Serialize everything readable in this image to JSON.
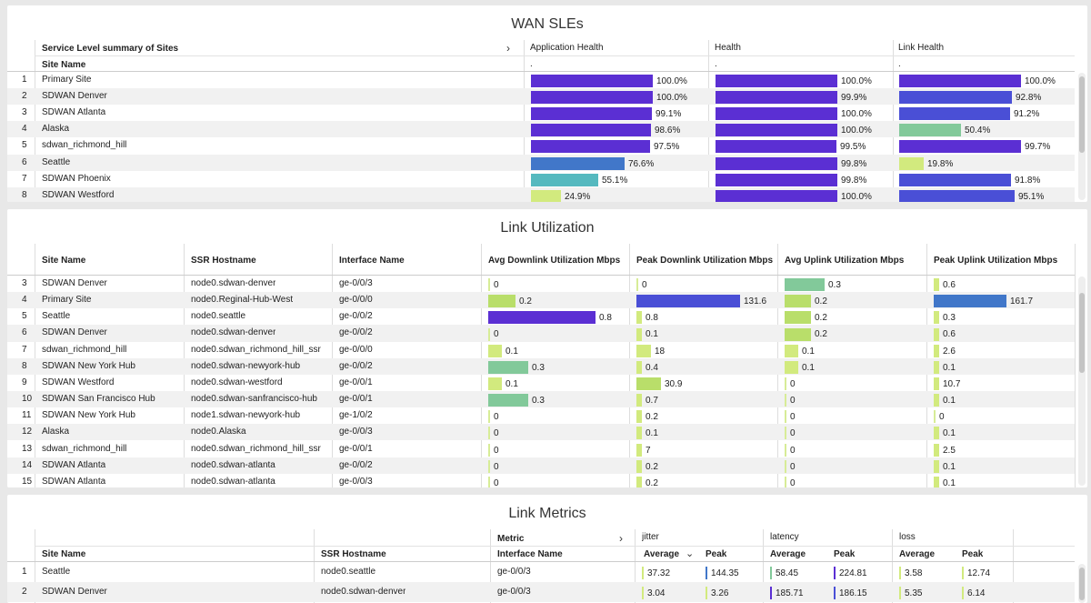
{
  "colors": {
    "purple": "#5b2fd3",
    "indigo": "#4a4fd6",
    "blue": "#4177c9",
    "teal": "#55b9bf",
    "green": "#82c99a",
    "lime": "#d2ea7e",
    "ygreen": "#b9de6a"
  },
  "wan": {
    "title": "WAN SLEs",
    "summary_label": "Service Level summary of Sites",
    "expand_icon": "chevron-right-icon",
    "site_col": "Site Name",
    "metric_cols": [
      "Application Health",
      "Health",
      "Link Health"
    ],
    "dot": ".",
    "rows": [
      {
        "n": "1",
        "site": "Primary Site",
        "vals": [
          {
            "v": 100.0,
            "t": "100.0%",
            "c": "purple"
          },
          {
            "v": 100.0,
            "t": "100.0%",
            "c": "purple"
          },
          {
            "v": 100.0,
            "t": "100.0%",
            "c": "purple"
          }
        ]
      },
      {
        "n": "2",
        "site": "SDWAN Denver",
        "vals": [
          {
            "v": 100.0,
            "t": "100.0%",
            "c": "purple"
          },
          {
            "v": 99.9,
            "t": "99.9%",
            "c": "purple"
          },
          {
            "v": 92.8,
            "t": "92.8%",
            "c": "indigo"
          }
        ]
      },
      {
        "n": "3",
        "site": "SDWAN Atlanta",
        "vals": [
          {
            "v": 99.1,
            "t": "99.1%",
            "c": "purple"
          },
          {
            "v": 100.0,
            "t": "100.0%",
            "c": "purple"
          },
          {
            "v": 91.2,
            "t": "91.2%",
            "c": "indigo"
          }
        ]
      },
      {
        "n": "4",
        "site": "Alaska",
        "vals": [
          {
            "v": 98.6,
            "t": "98.6%",
            "c": "purple"
          },
          {
            "v": 100.0,
            "t": "100.0%",
            "c": "purple"
          },
          {
            "v": 50.4,
            "t": "50.4%",
            "c": "green"
          }
        ]
      },
      {
        "n": "5",
        "site": "sdwan_richmond_hill",
        "vals": [
          {
            "v": 97.5,
            "t": "97.5%",
            "c": "purple"
          },
          {
            "v": 99.5,
            "t": "99.5%",
            "c": "purple"
          },
          {
            "v": 99.7,
            "t": "99.7%",
            "c": "purple"
          }
        ]
      },
      {
        "n": "6",
        "site": "Seattle",
        "vals": [
          {
            "v": 76.6,
            "t": "76.6%",
            "c": "blue"
          },
          {
            "v": 99.8,
            "t": "99.8%",
            "c": "purple"
          },
          {
            "v": 19.8,
            "t": "19.8%",
            "c": "lime"
          }
        ]
      },
      {
        "n": "7",
        "site": "SDWAN Phoenix",
        "vals": [
          {
            "v": 55.1,
            "t": "55.1%",
            "c": "teal"
          },
          {
            "v": 99.8,
            "t": "99.8%",
            "c": "purple"
          },
          {
            "v": 91.8,
            "t": "91.8%",
            "c": "indigo"
          }
        ]
      },
      {
        "n": "8",
        "site": "SDWAN Westford",
        "vals": [
          {
            "v": 24.9,
            "t": "24.9%",
            "c": "lime"
          },
          {
            "v": 100.0,
            "t": "100.0%",
            "c": "purple"
          },
          {
            "v": 95.1,
            "t": "95.1%",
            "c": "indigo"
          }
        ]
      }
    ]
  },
  "util": {
    "title": "Link Utilization",
    "cols": [
      "Site Name",
      "SSR Hostname",
      "Interface Name",
      "Avg Downlink Utilization Mbps",
      "Peak Downlink Utilization Mbps",
      "Avg Uplink Utilization Mbps",
      "Peak Uplink Utilization Mbps"
    ],
    "rows": [
      {
        "n": "3",
        "site": "SDWAN Denver",
        "host": "node0.sdwan-denver",
        "iface": "ge-0/0/3",
        "m": [
          {
            "v": 0,
            "t": "0"
          },
          {
            "v": 0,
            "t": "0"
          },
          {
            "v": 0.3,
            "t": "0.3",
            "c": "green"
          },
          {
            "v": 0.6,
            "t": "0.6",
            "c": "lime"
          }
        ]
      },
      {
        "n": "4",
        "site": "Primary Site",
        "host": "node0.Reginal-Hub-West",
        "iface": "ge-0/0/0",
        "m": [
          {
            "v": 0.2,
            "t": "0.2",
            "c": "ygreen"
          },
          {
            "v": 131.6,
            "t": "131.6",
            "c": "indigo"
          },
          {
            "v": 0.2,
            "t": "0.2",
            "c": "ygreen"
          },
          {
            "v": 161.7,
            "t": "161.7",
            "c": "blue"
          }
        ]
      },
      {
        "n": "5",
        "site": "Seattle",
        "host": "node0.seattle",
        "iface": "ge-0/0/2",
        "m": [
          {
            "v": 0.8,
            "t": "0.8",
            "c": "purple"
          },
          {
            "v": 0.8,
            "t": "0.8",
            "c": "lime"
          },
          {
            "v": 0.2,
            "t": "0.2",
            "c": "ygreen"
          },
          {
            "v": 0.3,
            "t": "0.3",
            "c": "lime"
          }
        ]
      },
      {
        "n": "6",
        "site": "SDWAN Denver",
        "host": "node0.sdwan-denver",
        "iface": "ge-0/0/2",
        "m": [
          {
            "v": 0,
            "t": "0"
          },
          {
            "v": 0.1,
            "t": "0.1",
            "c": "lime"
          },
          {
            "v": 0.2,
            "t": "0.2",
            "c": "ygreen"
          },
          {
            "v": 0.6,
            "t": "0.6",
            "c": "lime"
          }
        ]
      },
      {
        "n": "7",
        "site": "sdwan_richmond_hill",
        "host": "node0.sdwan_richmond_hill_ssr",
        "iface": "ge-0/0/0",
        "m": [
          {
            "v": 0.1,
            "t": "0.1",
            "c": "lime"
          },
          {
            "v": 18,
            "t": "18",
            "c": "lime"
          },
          {
            "v": 0.1,
            "t": "0.1",
            "c": "lime"
          },
          {
            "v": 2.6,
            "t": "2.6",
            "c": "lime"
          }
        ]
      },
      {
        "n": "8",
        "site": "SDWAN New York Hub",
        "host": "node0.sdwan-newyork-hub",
        "iface": "ge-0/0/2",
        "m": [
          {
            "v": 0.3,
            "t": "0.3",
            "c": "green"
          },
          {
            "v": 0.4,
            "t": "0.4",
            "c": "lime"
          },
          {
            "v": 0.1,
            "t": "0.1",
            "c": "lime"
          },
          {
            "v": 0.1,
            "t": "0.1",
            "c": "lime"
          }
        ]
      },
      {
        "n": "9",
        "site": "SDWAN Westford",
        "host": "node0.sdwan-westford",
        "iface": "ge-0/0/1",
        "m": [
          {
            "v": 0.1,
            "t": "0.1",
            "c": "lime"
          },
          {
            "v": 30.9,
            "t": "30.9",
            "c": "ygreen"
          },
          {
            "v": 0,
            "t": "0"
          },
          {
            "v": 10.7,
            "t": "10.7",
            "c": "lime"
          }
        ]
      },
      {
        "n": "10",
        "site": "SDWAN San Francisco Hub",
        "host": "node0.sdwan-sanfrancisco-hub",
        "iface": "ge-0/0/1",
        "m": [
          {
            "v": 0.3,
            "t": "0.3",
            "c": "green"
          },
          {
            "v": 0.7,
            "t": "0.7",
            "c": "lime"
          },
          {
            "v": 0,
            "t": "0"
          },
          {
            "v": 0.1,
            "t": "0.1",
            "c": "lime"
          }
        ]
      },
      {
        "n": "11",
        "site": "SDWAN New York Hub",
        "host": "node1.sdwan-newyork-hub",
        "iface": "ge-1/0/2",
        "m": [
          {
            "v": 0,
            "t": "0"
          },
          {
            "v": 0.2,
            "t": "0.2",
            "c": "lime"
          },
          {
            "v": 0,
            "t": "0"
          },
          {
            "v": 0,
            "t": "0"
          }
        ]
      },
      {
        "n": "12",
        "site": "Alaska",
        "host": "node0.Alaska",
        "iface": "ge-0/0/3",
        "m": [
          {
            "v": 0,
            "t": "0"
          },
          {
            "v": 0.1,
            "t": "0.1",
            "c": "lime"
          },
          {
            "v": 0,
            "t": "0"
          },
          {
            "v": 0.1,
            "t": "0.1",
            "c": "lime"
          }
        ]
      },
      {
        "n": "13",
        "site": "sdwan_richmond_hill",
        "host": "node0.sdwan_richmond_hill_ssr",
        "iface": "ge-0/0/1",
        "m": [
          {
            "v": 0,
            "t": "0"
          },
          {
            "v": 7,
            "t": "7",
            "c": "lime"
          },
          {
            "v": 0,
            "t": "0"
          },
          {
            "v": 2.5,
            "t": "2.5",
            "c": "lime"
          }
        ]
      },
      {
        "n": "14",
        "site": "SDWAN Atlanta",
        "host": "node0.sdwan-atlanta",
        "iface": "ge-0/0/2",
        "m": [
          {
            "v": 0,
            "t": "0"
          },
          {
            "v": 0.2,
            "t": "0.2",
            "c": "lime"
          },
          {
            "v": 0,
            "t": "0"
          },
          {
            "v": 0.1,
            "t": "0.1",
            "c": "lime"
          }
        ]
      },
      {
        "n": "15",
        "site": "SDWAN Atlanta",
        "host": "node0.sdwan-atlanta",
        "iface": "ge-0/0/3",
        "m": [
          {
            "v": 0,
            "t": "0"
          },
          {
            "v": 0.2,
            "t": "0.2",
            "c": "lime"
          },
          {
            "v": 0,
            "t": "0"
          },
          {
            "v": 0.1,
            "t": "0.1",
            "c": "lime"
          }
        ]
      }
    ]
  },
  "metrics": {
    "title": "Link Metrics",
    "metric_label": "Metric",
    "expand_icon": "chevron-right-icon",
    "groups": [
      "jitter",
      "latency",
      "loss"
    ],
    "cols": [
      "Site Name",
      "SSR Hostname",
      "Interface Name"
    ],
    "sub": [
      "Average",
      "Peak",
      "Average",
      "Peak",
      "Average",
      "Peak"
    ],
    "sort_icon": "chevron-down-icon",
    "rows": [
      {
        "n": "1",
        "site": "Seattle",
        "host": "node0.seattle",
        "iface": "ge-0/0/3",
        "v": [
          {
            "t": "37.32",
            "c": "lime"
          },
          {
            "t": "144.35",
            "c": "blue"
          },
          {
            "t": "58.45",
            "c": "green"
          },
          {
            "t": "224.81",
            "c": "purple"
          },
          {
            "t": "3.58",
            "c": "lime"
          },
          {
            "t": "12.74",
            "c": "lime"
          }
        ]
      },
      {
        "n": "2",
        "site": "SDWAN Denver",
        "host": "node0.sdwan-denver",
        "iface": "ge-0/0/3",
        "v": [
          {
            "t": "3.04",
            "c": "lime"
          },
          {
            "t": "3.26",
            "c": "lime"
          },
          {
            "t": "185.71",
            "c": "purple"
          },
          {
            "t": "186.15",
            "c": "indigo"
          },
          {
            "t": "5.35",
            "c": "lime"
          },
          {
            "t": "6.14",
            "c": "lime"
          }
        ]
      }
    ]
  }
}
